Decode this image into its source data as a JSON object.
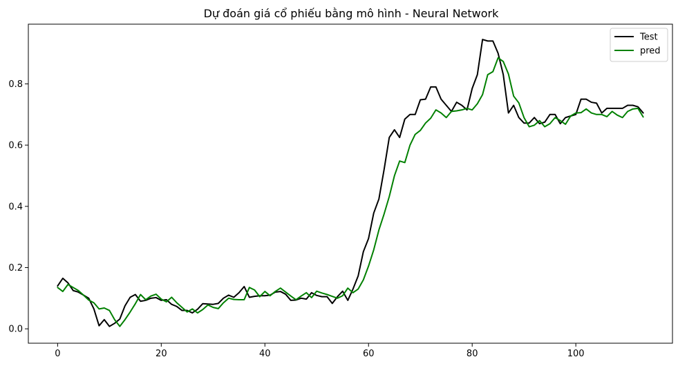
{
  "chart_data": {
    "type": "line",
    "title": "Dự đoán giá cổ phiếu bằng mô hình - Neural Network",
    "xlabel": "",
    "ylabel": "",
    "xlim": [
      -5.65,
      118.65
    ],
    "ylim": [
      -0.047,
      0.995
    ],
    "xticks": [
      0,
      20,
      40,
      60,
      80,
      100
    ],
    "xtick_labels": [
      "0",
      "20",
      "40",
      "60",
      "80",
      "100"
    ],
    "yticks": [
      0.0,
      0.2,
      0.4,
      0.6,
      0.8
    ],
    "ytick_labels": [
      "0.0",
      "0.2",
      "0.4",
      "0.6",
      "0.8"
    ],
    "grid": false,
    "legend_position": "top-right",
    "x": [
      0,
      1,
      2,
      3,
      4,
      5,
      6,
      7,
      8,
      9,
      10,
      11,
      12,
      13,
      14,
      15,
      16,
      17,
      18,
      19,
      20,
      21,
      22,
      23,
      24,
      25,
      26,
      27,
      28,
      29,
      30,
      31,
      32,
      33,
      34,
      35,
      36,
      37,
      38,
      39,
      40,
      41,
      42,
      43,
      44,
      45,
      46,
      47,
      48,
      49,
      50,
      51,
      52,
      53,
      54,
      55,
      56,
      57,
      58,
      59,
      60,
      61,
      62,
      63,
      64,
      65,
      66,
      67,
      68,
      69,
      70,
      71,
      72,
      73,
      74,
      75,
      76,
      77,
      78,
      79,
      80,
      81,
      82,
      83,
      84,
      85,
      86,
      87,
      88,
      89,
      90,
      91,
      92,
      93,
      94,
      95,
      96,
      97,
      98,
      99,
      100,
      101,
      102,
      103,
      104,
      105,
      106,
      107,
      108,
      109,
      110,
      111,
      112,
      113
    ],
    "series": [
      {
        "name": "Test",
        "color": "#000000",
        "values": [
          0.14,
          0.165,
          0.15,
          0.125,
          0.12,
          0.11,
          0.1,
          0.065,
          0.01,
          0.03,
          0.008,
          0.018,
          0.032,
          0.075,
          0.103,
          0.112,
          0.09,
          0.093,
          0.1,
          0.102,
          0.093,
          0.095,
          0.08,
          0.073,
          0.06,
          0.06,
          0.052,
          0.064,
          0.082,
          0.081,
          0.08,
          0.083,
          0.1,
          0.11,
          0.103,
          0.118,
          0.138,
          0.103,
          0.106,
          0.108,
          0.108,
          0.11,
          0.12,
          0.122,
          0.113,
          0.093,
          0.094,
          0.1,
          0.097,
          0.118,
          0.109,
          0.105,
          0.105,
          0.083,
          0.105,
          0.123,
          0.093,
          0.13,
          0.173,
          0.252,
          0.295,
          0.378,
          0.424,
          0.52,
          0.625,
          0.65,
          0.625,
          0.685,
          0.7,
          0.7,
          0.748,
          0.75,
          0.79,
          0.79,
          0.75,
          0.73,
          0.71,
          0.74,
          0.73,
          0.715,
          0.785,
          0.83,
          0.945,
          0.94,
          0.94,
          0.9,
          0.83,
          0.705,
          0.73,
          0.69,
          0.672,
          0.672,
          0.69,
          0.67,
          0.675,
          0.7,
          0.7,
          0.67,
          0.69,
          0.695,
          0.7,
          0.75,
          0.75,
          0.74,
          0.737,
          0.705,
          0.72,
          0.72,
          0.72,
          0.72,
          0.73,
          0.73,
          0.725,
          0.705
        ]
      },
      {
        "name": "pred",
        "color": "#008000",
        "values": [
          0.135,
          0.122,
          0.145,
          0.135,
          0.125,
          0.11,
          0.094,
          0.085,
          0.065,
          0.068,
          0.06,
          0.03,
          0.008,
          0.03,
          0.055,
          0.082,
          0.112,
          0.095,
          0.107,
          0.113,
          0.097,
          0.088,
          0.103,
          0.085,
          0.07,
          0.055,
          0.065,
          0.052,
          0.063,
          0.078,
          0.07,
          0.066,
          0.085,
          0.1,
          0.096,
          0.095,
          0.095,
          0.135,
          0.127,
          0.105,
          0.122,
          0.108,
          0.122,
          0.133,
          0.12,
          0.107,
          0.095,
          0.107,
          0.118,
          0.102,
          0.123,
          0.117,
          0.112,
          0.106,
          0.1,
          0.108,
          0.133,
          0.118,
          0.13,
          0.16,
          0.205,
          0.258,
          0.323,
          0.375,
          0.432,
          0.5,
          0.548,
          0.543,
          0.6,
          0.635,
          0.648,
          0.672,
          0.688,
          0.715,
          0.705,
          0.69,
          0.71,
          0.712,
          0.715,
          0.72,
          0.715,
          0.735,
          0.765,
          0.83,
          0.84,
          0.885,
          0.873,
          0.832,
          0.76,
          0.738,
          0.69,
          0.66,
          0.665,
          0.68,
          0.66,
          0.67,
          0.69,
          0.68,
          0.668,
          0.695,
          0.705,
          0.706,
          0.718,
          0.705,
          0.7,
          0.7,
          0.693,
          0.71,
          0.698,
          0.69,
          0.71,
          0.718,
          0.72,
          0.692
        ]
      }
    ]
  }
}
